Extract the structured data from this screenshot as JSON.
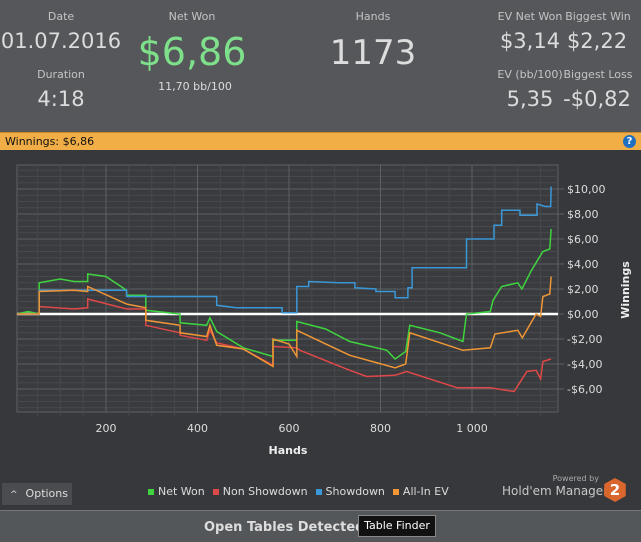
{
  "summary": {
    "date_label": "Date",
    "date": "01.07.2016",
    "duration_label": "Duration",
    "duration": "4:18",
    "net_won_label": "Net Won",
    "net_won": "$6,86",
    "bb100": "11,70 bb/100",
    "hands_label": "Hands",
    "hands": "1173",
    "ev_net_won_label": "EV Net Won",
    "ev_net_won": "$3,14",
    "biggest_win_label": "Biggest Win",
    "biggest_win": "$2,22",
    "ev_bb100_label": "EV (bb/100)",
    "ev_bb100": "5,35",
    "biggest_loss_label": "Biggest Loss",
    "biggest_loss": "-$0,82"
  },
  "winnings_bar": {
    "label": "Winnings: $6,86",
    "help_icon": "question-circle-icon"
  },
  "colors": {
    "net_won": "#3fd43f",
    "non_showdown": "#e04848",
    "showdown": "#3a97d8",
    "all_in_ev": "#ef9635",
    "accent": "#f1ae47",
    "net_won_text": "#7ee08a"
  },
  "chart_data": {
    "type": "line",
    "xlabel": "Hands",
    "ylabel": "Winnings",
    "xlim": [
      0,
      1173
    ],
    "ylim": [
      -7.8,
      12
    ],
    "x_ticks": [
      200,
      400,
      600,
      800,
      1000
    ],
    "x_tick_labels": [
      "200",
      "400",
      "600",
      "800",
      "1 000"
    ],
    "y_ticks": [
      10,
      8,
      6,
      4,
      2,
      0,
      -2,
      -4,
      -6
    ],
    "y_tick_labels": [
      "$10,00",
      "$8,00",
      "$6,00",
      "$4,00",
      "$2,00",
      "$0,00",
      "-$2,00",
      "-$4,00",
      "-$6,00"
    ],
    "grid": true,
    "legend_position": "bottom",
    "series": [
      {
        "name": "Net Won",
        "color": "#3fd43f",
        "points": [
          [
            5,
            0
          ],
          [
            30,
            0.2
          ],
          [
            54,
            0
          ],
          [
            54,
            2.5
          ],
          [
            100,
            2.8
          ],
          [
            130,
            2.6
          ],
          [
            160,
            2.6
          ],
          [
            160,
            3.2
          ],
          [
            200,
            3.0
          ],
          [
            245,
            1.9
          ],
          [
            245,
            1.5
          ],
          [
            287,
            1.5
          ],
          [
            287,
            0.3
          ],
          [
            362,
            0
          ],
          [
            362,
            -0.7
          ],
          [
            420,
            -0.9
          ],
          [
            427,
            -0.3
          ],
          [
            442,
            -1.4
          ],
          [
            500,
            -2.7
          ],
          [
            565,
            -3.4
          ],
          [
            565,
            -2.1
          ],
          [
            617,
            -2.1
          ],
          [
            617,
            -0.6
          ],
          [
            680,
            -1.2
          ],
          [
            733,
            -2.2
          ],
          [
            814,
            -2.9
          ],
          [
            832,
            -3.6
          ],
          [
            855,
            -3.0
          ],
          [
            864,
            -0.9
          ],
          [
            930,
            -1.5
          ],
          [
            980,
            -2.2
          ],
          [
            988,
            0
          ],
          [
            1040,
            0.2
          ],
          [
            1046,
            1.1
          ],
          [
            1065,
            2.2
          ],
          [
            1100,
            2.5
          ],
          [
            1109,
            2.0
          ],
          [
            1130,
            3.5
          ],
          [
            1155,
            5.0
          ],
          [
            1170,
            5.2
          ],
          [
            1173,
            6.8
          ]
        ]
      },
      {
        "name": "Non Showdown",
        "color": "#e04848",
        "points": [
          [
            5,
            0
          ],
          [
            54,
            0
          ],
          [
            54,
            0.6
          ],
          [
            130,
            0.4
          ],
          [
            160,
            0.5
          ],
          [
            160,
            1.2
          ],
          [
            245,
            0.4
          ],
          [
            287,
            0.4
          ],
          [
            287,
            -0.9
          ],
          [
            362,
            -1.5
          ],
          [
            362,
            -1.7
          ],
          [
            420,
            -2.1
          ],
          [
            427,
            -1.3
          ],
          [
            442,
            -2.3
          ],
          [
            500,
            -2.8
          ],
          [
            565,
            -4.1
          ],
          [
            565,
            -2.6
          ],
          [
            617,
            -2.7
          ],
          [
            624,
            -2.9
          ],
          [
            733,
            -4.5
          ],
          [
            770,
            -5.0
          ],
          [
            832,
            -4.9
          ],
          [
            857,
            -4.6
          ],
          [
            968,
            -5.9
          ],
          [
            1040,
            -5.9
          ],
          [
            1092,
            -6.2
          ],
          [
            1120,
            -4.6
          ],
          [
            1140,
            -4.5
          ],
          [
            1150,
            -5.2
          ],
          [
            1155,
            -3.8
          ],
          [
            1173,
            -3.6
          ]
        ]
      },
      {
        "name": "Showdown",
        "color": "#3a97d8",
        "points": [
          [
            5,
            0
          ],
          [
            54,
            0
          ],
          [
            54,
            1.9
          ],
          [
            245,
            1.9
          ],
          [
            245,
            1.4
          ],
          [
            442,
            1.4
          ],
          [
            442,
            0.7
          ],
          [
            485,
            0.5
          ],
          [
            585,
            0.5
          ],
          [
            585,
            0.1
          ],
          [
            617,
            0.1
          ],
          [
            617,
            2.2
          ],
          [
            643,
            2.2
          ],
          [
            643,
            2.6
          ],
          [
            710,
            2.5
          ],
          [
            744,
            2.5
          ],
          [
            744,
            2.1
          ],
          [
            790,
            2.0
          ],
          [
            790,
            1.8
          ],
          [
            832,
            1.8
          ],
          [
            832,
            1.3
          ],
          [
            860,
            1.3
          ],
          [
            860,
            2.1
          ],
          [
            869,
            2.1
          ],
          [
            869,
            3.7
          ],
          [
            988,
            3.7
          ],
          [
            988,
            6.0
          ],
          [
            1048,
            6.0
          ],
          [
            1048,
            7.1
          ],
          [
            1065,
            7.1
          ],
          [
            1065,
            8.3
          ],
          [
            1105,
            8.3
          ],
          [
            1105,
            7.9
          ],
          [
            1142,
            7.9
          ],
          [
            1142,
            8.8
          ],
          [
            1160,
            8.6
          ],
          [
            1172,
            8.6
          ],
          [
            1173,
            10.2
          ]
        ]
      },
      {
        "name": "All-In EV",
        "color": "#ef9635",
        "points": [
          [
            5,
            0
          ],
          [
            54,
            0
          ],
          [
            54,
            1.8
          ],
          [
            130,
            1.9
          ],
          [
            160,
            1.8
          ],
          [
            160,
            2.2
          ],
          [
            245,
            0.8
          ],
          [
            287,
            0.5
          ],
          [
            287,
            -0.5
          ],
          [
            362,
            -0.9
          ],
          [
            362,
            -1.5
          ],
          [
            420,
            -1.8
          ],
          [
            427,
            -0.9
          ],
          [
            442,
            -2.5
          ],
          [
            500,
            -2.8
          ],
          [
            565,
            -4.2
          ],
          [
            565,
            -2.0
          ],
          [
            600,
            -2.4
          ],
          [
            617,
            -3.4
          ],
          [
            617,
            -1.3
          ],
          [
            733,
            -3.3
          ],
          [
            832,
            -4.3
          ],
          [
            855,
            -4.0
          ],
          [
            864,
            -1.5
          ],
          [
            980,
            -2.9
          ],
          [
            1040,
            -2.7
          ],
          [
            1050,
            -1.6
          ],
          [
            1100,
            -1.3
          ],
          [
            1110,
            -1.9
          ],
          [
            1140,
            0.0
          ],
          [
            1150,
            -0.2
          ],
          [
            1155,
            1.4
          ],
          [
            1170,
            1.6
          ],
          [
            1173,
            3.0
          ]
        ]
      }
    ]
  },
  "options_button": {
    "label": "Options",
    "icon": "chevron-up-icon"
  },
  "branding": {
    "powered_by": "Powered by",
    "product": "Hold'em Manager",
    "badge": "2"
  },
  "bottom": {
    "status": "Open Tables Detected",
    "table_finder": "Table Finder"
  }
}
